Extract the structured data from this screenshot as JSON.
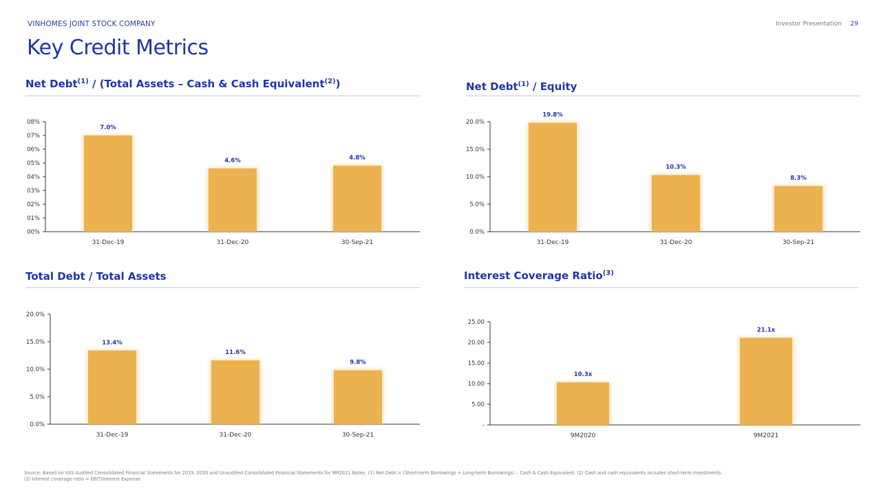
{
  "header": {
    "company": "VINHOMES JOINT STOCK COMPANY",
    "presentation": "Investor Presentation",
    "page": "29",
    "title": "Key Credit Metrics"
  },
  "sections": [
    {
      "title_main": "Net Debt",
      "title_sup1": "(1)",
      "title_mid": " / (Total Assets – Cash & Cash Equivalent",
      "title_sup2": "(2)",
      "title_end": ")"
    },
    {
      "title_main": "Net Debt",
      "title_sup1": "(1)",
      "title_mid": " / Equity",
      "title_sup2": "",
      "title_end": ""
    },
    {
      "title_main": "Total Debt / Total Assets",
      "title_sup1": "",
      "title_mid": "",
      "title_sup2": "",
      "title_end": ""
    },
    {
      "title_main": "Interest Coverage Ratio",
      "title_sup1": "(3)",
      "title_mid": "",
      "title_sup2": "",
      "title_end": ""
    }
  ],
  "colors": {
    "bar": "#ECB24F",
    "label": "#1f35a6",
    "axis": "#333333"
  },
  "chart_data": [
    {
      "type": "bar",
      "title": "Net Debt(1) / (Total Assets – Cash & Cash Equivalent(2))",
      "categories": [
        "31-Dec-19",
        "31-Dec-20",
        "30-Sep-21"
      ],
      "values": [
        7.0,
        4.6,
        4.8
      ],
      "data_labels": [
        "7.0%",
        "4.6%",
        "4.8%"
      ],
      "ylim": [
        0,
        8
      ],
      "yticks": [
        0,
        1,
        2,
        3,
        4,
        5,
        6,
        7,
        8
      ],
      "ytick_labels": [
        "00%",
        "01%",
        "02%",
        "03%",
        "04%",
        "05%",
        "06%",
        "07%",
        "08%"
      ],
      "grid": false
    },
    {
      "type": "bar",
      "title": "Net Debt(1) / Equity",
      "categories": [
        "31-Dec-19",
        "31-Dec-20",
        "30-Sep-21"
      ],
      "values": [
        19.8,
        10.3,
        8.3
      ],
      "data_labels": [
        "19.8%",
        "10.3%",
        "8.3%"
      ],
      "ylim": [
        0,
        20
      ],
      "yticks": [
        0,
        5,
        10,
        15,
        20
      ],
      "ytick_labels": [
        "0.0%",
        "5.0%",
        "10.0%",
        "15.0%",
        "20.0%"
      ],
      "grid": false
    },
    {
      "type": "bar",
      "title": "Total Debt / Total Assets",
      "categories": [
        "31-Dec-19",
        "31-Dec-20",
        "30-Sep-21"
      ],
      "values": [
        13.4,
        11.6,
        9.8
      ],
      "data_labels": [
        "13.4%",
        "11.6%",
        "9.8%"
      ],
      "ylim": [
        0,
        20
      ],
      "yticks": [
        0,
        5,
        10,
        15,
        20
      ],
      "ytick_labels": [
        "0.0%",
        "5.0%",
        "10.0%",
        "15.0%",
        "20.0%"
      ],
      "grid": false
    },
    {
      "type": "bar",
      "title": "Interest Coverage Ratio(3)",
      "categories": [
        "9M2020",
        "9M2021"
      ],
      "values": [
        10.3,
        21.1
      ],
      "data_labels": [
        "10.3x",
        "21.1x"
      ],
      "ylim": [
        0,
        25
      ],
      "yticks": [
        0,
        5,
        10,
        15,
        20,
        25
      ],
      "ytick_labels": [
        "-",
        "5.00",
        "10.00",
        "15.00",
        "20.00",
        "25.00"
      ],
      "grid": false
    }
  ],
  "footnote": {
    "line1": "Source: Based on VAS Audited Consolidated Financial Statements for 2019, 2020 and Unaudited Consolidated Financial Statements for 9M2021 Notes: (1) Net Debt = (Short-term Borrowings + Long-term Borrowings) – Cash & Cash Equivalent. (2) Cash and cash equivalents includes short-term investments.",
    "line2": "(3) Interest coverage ratio = EBIT/Interest Expense"
  }
}
